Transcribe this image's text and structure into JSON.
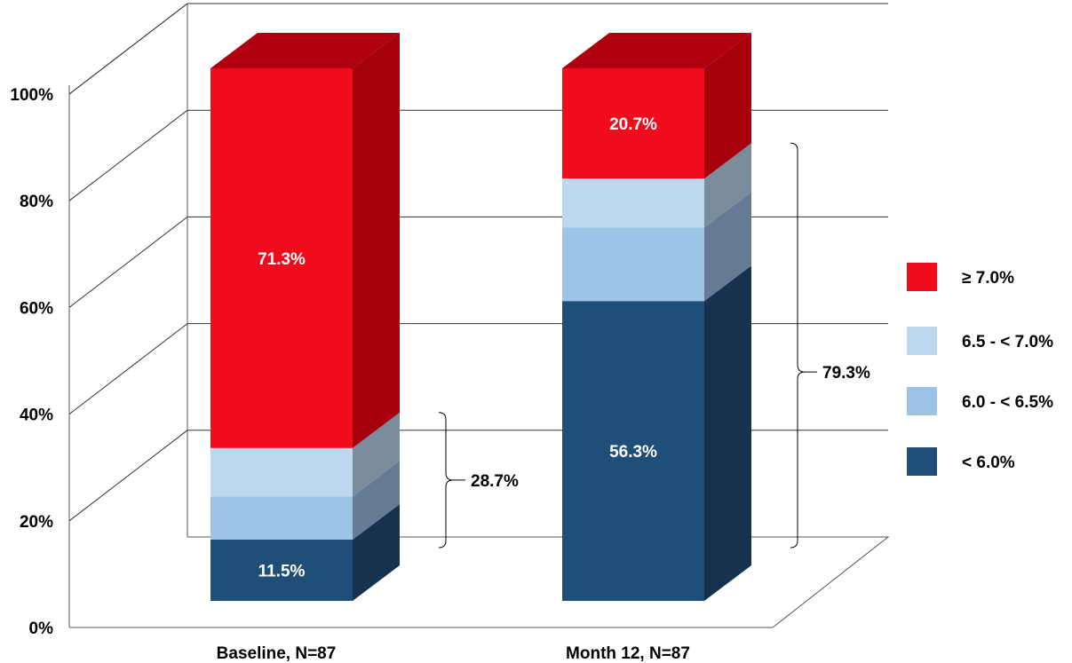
{
  "chart_data": {
    "type": "bar",
    "stacked": true,
    "three_d": true,
    "categories": [
      "Baseline, N=87",
      "Month 12, N=87"
    ],
    "series": [
      {
        "name": "< 6.0%",
        "values": [
          11.5,
          56.3
        ],
        "color": "#1f4e79",
        "side": "#17324f",
        "labels": [
          "11.5%",
          "56.3%"
        ]
      },
      {
        "name": "6.0 - < 6.5%",
        "values": [
          8.1,
          13.8
        ],
        "color": "#9dc3e6",
        "side": "#647b93",
        "labels": [
          "",
          ""
        ]
      },
      {
        "name": "6.5 - < 7.0%",
        "values": [
          9.1,
          9.2
        ],
        "color": "#bdd7ee",
        "side": "#7a8c9c",
        "labels": [
          "",
          ""
        ]
      },
      {
        "name": "≥ 7.0%",
        "values": [
          71.3,
          20.7
        ],
        "color": "#f00c1c",
        "side": "#a6000c",
        "labels": [
          "71.3%",
          "20.7%"
        ]
      }
    ],
    "brackets": [
      {
        "category": "Baseline, N=87",
        "from": 0,
        "to": 28.7,
        "label": "28.7%"
      },
      {
        "category": "Month 12, N=87",
        "from": 0,
        "to": 79.3,
        "label": "79.3%"
      }
    ],
    "ylim": [
      0,
      100
    ],
    "yticks": [
      0,
      20,
      40,
      60,
      80,
      100
    ],
    "ytick_labels": [
      "0%",
      "20%",
      "40%",
      "60%",
      "80%",
      "100%"
    ],
    "grid": true,
    "legend_position": "right",
    "legend_order": [
      "≥ 7.0%",
      "6.5 - < 7.0%",
      "6.0 - < 6.5%",
      "< 6.0%"
    ]
  }
}
